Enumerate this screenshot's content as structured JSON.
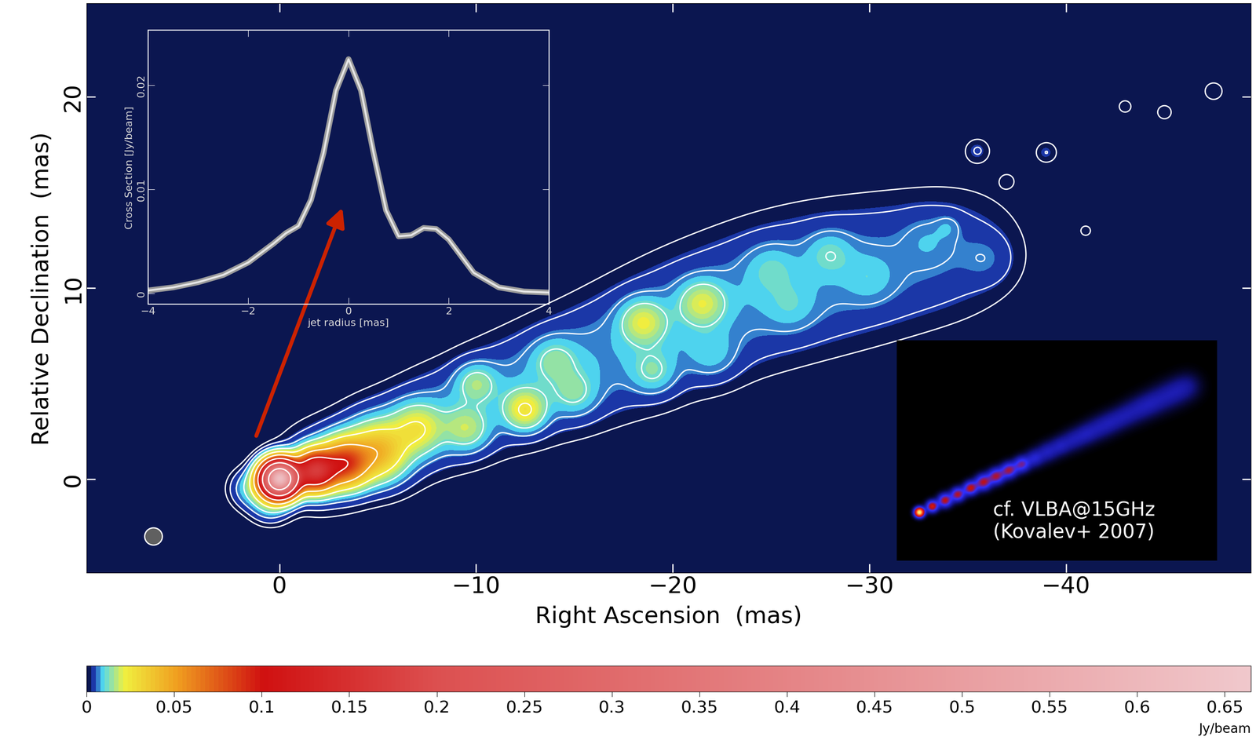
{
  "chart_data": [
    {
      "type": "heatmap",
      "xlabel": "Right Ascension  (mas)",
      "ylabel": "Relative Declination  (mas)",
      "xlim": [
        9.8,
        -49.4
      ],
      "ylim": [
        -4.9,
        24.9
      ],
      "xticks": [
        0,
        {
          "value": -10,
          "label": "−10"
        },
        {
          "value": -20,
          "label": "−20"
        },
        {
          "value": -30,
          "label": "−30"
        },
        {
          "value": -40,
          "label": "−40"
        }
      ],
      "yticks": [
        0,
        10,
        20
      ],
      "colorbar": {
        "label": "Jy/beam",
        "clim": [
          0,
          0.665
        ],
        "ticks": [
          0,
          0.05,
          0.1,
          0.15,
          0.2,
          0.25,
          0.3,
          0.35,
          0.4,
          0.45,
          0.5,
          0.55,
          0.6,
          0.65
        ]
      },
      "contour_levels": [
        0.0015,
        0.003,
        0.006,
        0.012,
        0.024,
        0.048,
        0.096,
        0.192,
        0.384
      ],
      "components": {
        "x": [
          0,
          -1.8,
          -3.3,
          -5,
          -2,
          -5,
          -8,
          -11,
          -14,
          -17,
          -20,
          -23,
          -26,
          -29,
          -32,
          -35,
          -7,
          -9.5,
          -12.5,
          -10,
          -15,
          -14,
          -18.5,
          -21.5,
          -19,
          -22,
          -25,
          -28,
          -26,
          -30,
          -33,
          -36,
          -34,
          -35.5,
          -39,
          -45,
          -47.5,
          -43,
          -37,
          -41,
          1.5,
          0.5
        ],
        "y": [
          0,
          0.4,
          0.8,
          1.4,
          0.6,
          1.8,
          3.1,
          4.3,
          5.4,
          6.6,
          8.0,
          9.2,
          10.2,
          10.8,
          11.4,
          12.0,
          2.6,
          2.6,
          3.6,
          5,
          4.5,
          6.2,
          8.2,
          9.2,
          5.6,
          6.5,
          11,
          11.8,
          9,
          10.5,
          12.5,
          11.5,
          13.2,
          17.2,
          17.1,
          19.2,
          20.3,
          19.5,
          15.6,
          13,
          -0.5,
          -1.2
        ],
        "flux": [
          0.62,
          0.15,
          0.08,
          0.035,
          0.006,
          0.006,
          0.0055,
          0.005,
          0.005,
          0.0045,
          0.0045,
          0.004,
          0.004,
          0.0035,
          0.003,
          0.003,
          0.018,
          0.012,
          0.02,
          0.01,
          0.008,
          0.008,
          0.015,
          0.014,
          0.008,
          0.005,
          0.005,
          0.006,
          0.004,
          0.004,
          0.003,
          0.0025,
          0.003,
          0.003,
          0.003,
          0.0025,
          0.0025,
          0.0022,
          0.002,
          0.002,
          0.01,
          0.012
        ],
        "size": [
          1.3,
          1.5,
          1.8,
          2.2,
          3.5,
          3.8,
          4.0,
          4.3,
          4.6,
          5.0,
          5.3,
          5.5,
          5.6,
          5.6,
          5.5,
          5.2,
          2.0,
          1.8,
          1.6,
          1.6,
          1.8,
          1.8,
          1.8,
          1.8,
          1.8,
          2.0,
          2.0,
          1.8,
          2.0,
          2.0,
          2.0,
          2.0,
          1.0,
          1.1,
          1.0,
          0.8,
          1.0,
          0.8,
          0.7,
          0.7,
          1.5,
          1.5
        ]
      },
      "beam": {
        "x": 6.4,
        "y": -3.0,
        "size": 0.9
      },
      "arrow": {
        "x": 1.2,
        "y": 2.2
      }
    },
    {
      "type": "line",
      "xlabel": "jet radius [mas]",
      "ylabel": "Cross Section [Jy/beam]",
      "x": [
        -4,
        -3.5,
        -3,
        -2.5,
        -2,
        -1.5,
        -1.25,
        -1,
        -0.75,
        -0.5,
        -0.25,
        0,
        0.25,
        0.5,
        0.75,
        1,
        1.25,
        1.5,
        1.75,
        2,
        2.5,
        3,
        3.5,
        4
      ],
      "values": [
        0.0003,
        0.0006,
        0.0011,
        0.0018,
        0.003,
        0.0048,
        0.0058,
        0.0065,
        0.009,
        0.0135,
        0.0195,
        0.0225,
        0.0195,
        0.0135,
        0.008,
        0.0055,
        0.0056,
        0.0063,
        0.0062,
        0.0052,
        0.002,
        0.0006,
        0.0002,
        0.0001
      ],
      "color": "#e6e6e6",
      "xlim": [
        -4,
        4
      ],
      "xticks": [
        {
          "value": -4,
          "label": "−4"
        },
        {
          "value": -2,
          "label": "−2"
        },
        0,
        2,
        4
      ],
      "ylim": [
        -0.001,
        0.0253
      ],
      "yticks": [
        0,
        0.01,
        0.02
      ]
    },
    {
      "type": "heatmap",
      "annotation": "cf. VLBA@15GHz\n(Kovalev+ 2007)",
      "tick_labels": false,
      "xlim": [
        0,
        100
      ],
      "ylim": [
        0,
        70
      ],
      "clim": [
        0,
        1
      ],
      "components": {
        "x": [
          7,
          11,
          15,
          19,
          23,
          27,
          31,
          35,
          39,
          43,
          47,
          51,
          55,
          59,
          63,
          67,
          71,
          75,
          79,
          83,
          87,
          91
        ],
        "y": [
          15.3,
          17.2,
          19.1,
          21.0,
          23.0,
          24.9,
          26.8,
          28.7,
          30.6,
          32.5,
          34.5,
          36.4,
          38.3,
          40.2,
          42.1,
          44.0,
          45.9,
          47.9,
          49.8,
          51.7,
          53.6,
          55.5
        ],
        "flux": [
          0.9,
          0.45,
          0.4,
          0.38,
          0.4,
          0.38,
          0.36,
          0.35,
          0.3,
          0.17,
          0.14,
          0.13,
          0.12,
          0.12,
          0.11,
          0.11,
          0.1,
          0.1,
          0.1,
          0.09,
          0.09,
          0.09
        ],
        "size": [
          2.5,
          3,
          3.5,
          3.5,
          3.5,
          4,
          4,
          4,
          4,
          4.5,
          5,
          5,
          5.5,
          5.5,
          6,
          6,
          6,
          6.5,
          6.5,
          7,
          7,
          7
        ]
      }
    }
  ]
}
